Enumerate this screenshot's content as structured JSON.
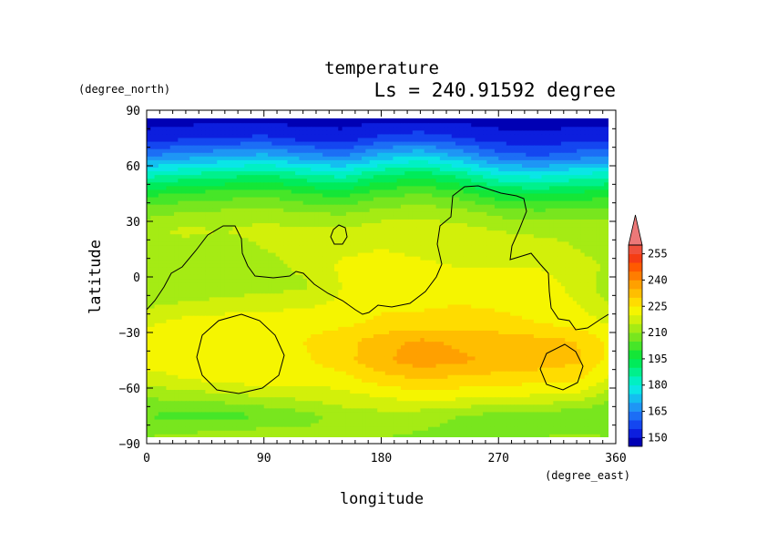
{
  "chart_data": {
    "type": "heatmap",
    "title": "temperature",
    "subtitle": "Ls = 240.91592 degree",
    "xlabel": "longitude",
    "ylabel": "latitude",
    "x_unit": "(degree_east)",
    "y_unit": "(degree_north)",
    "xlim": [
      0,
      360
    ],
    "ylim": [
      -90,
      90
    ],
    "x_data_range": [
      0,
      357
    ],
    "y_data_range": [
      -87,
      87
    ],
    "x_ticks": [
      {
        "value": 0,
        "label": "0"
      },
      {
        "value": 90,
        "label": "90"
      },
      {
        "value": 180,
        "label": "180"
      },
      {
        "value": 270,
        "label": "270"
      },
      {
        "value": 360,
        "label": "360"
      }
    ],
    "y_ticks": [
      {
        "value": 90,
        "label": "90"
      },
      {
        "value": 60,
        "label": "60"
      },
      {
        "value": 30,
        "label": "30"
      },
      {
        "value": 0,
        "label": "0"
      },
      {
        "value": -30,
        "label": "−30"
      },
      {
        "value": -60,
        "label": "−60"
      },
      {
        "value": -90,
        "label": "−90"
      }
    ],
    "colorbar": {
      "levels": [
        145,
        150,
        155,
        160,
        165,
        170,
        175,
        180,
        185,
        190,
        195,
        200,
        205,
        210,
        215,
        220,
        225,
        230,
        235,
        240,
        245,
        250,
        255,
        260
      ],
      "colors": [
        "#0000b4",
        "#0c1ede",
        "#1446f0",
        "#1c6ef5",
        "#1e96f5",
        "#14bef0",
        "#0ae6e6",
        "#00f0c3",
        "#00f08c",
        "#00eb5a",
        "#14e637",
        "#46e628",
        "#78e61e",
        "#a5eb14",
        "#d2f00a",
        "#f5f500",
        "#ffdc00",
        "#ffbe00",
        "#ffa000",
        "#ff7d00",
        "#ff5a00",
        "#f53c14",
        "#f0503c",
        "#ec7878"
      ],
      "labels": [
        "150",
        "165",
        "180",
        "195",
        "210",
        "225",
        "240",
        "255"
      ],
      "label_values": [
        150,
        165,
        180,
        195,
        210,
        225,
        240,
        255
      ],
      "extend": "max"
    },
    "grid_note": "temperature (K) sampled on longitude x latitude grid",
    "lon": [
      0,
      30,
      60,
      90,
      120,
      150,
      180,
      210,
      240,
      270,
      300,
      330,
      360
    ],
    "lat": [
      87,
      75,
      65,
      55,
      45,
      35,
      25,
      15,
      5,
      -5,
      -15,
      -25,
      -35,
      -45,
      -55,
      -65,
      -75,
      -87
    ],
    "values": [
      [
        147,
        147,
        147,
        147,
        147,
        147,
        147,
        147,
        147,
        147,
        147,
        147,
        147
      ],
      [
        152,
        154,
        155,
        156,
        153,
        152,
        156,
        158,
        155,
        152,
        151,
        153,
        152
      ],
      [
        165,
        168,
        170,
        172,
        168,
        165,
        172,
        176,
        170,
        163,
        160,
        163,
        165
      ],
      [
        183,
        186,
        188,
        190,
        186,
        183,
        190,
        193,
        188,
        180,
        178,
        181,
        183
      ],
      [
        198,
        201,
        202,
        204,
        200,
        198,
        203,
        205,
        202,
        196,
        194,
        196,
        198
      ],
      [
        208,
        210,
        211,
        212,
        210,
        209,
        212,
        213,
        212,
        208,
        206,
        207,
        208
      ],
      [
        214,
        216,
        215,
        217,
        216,
        216,
        218,
        218,
        217,
        215,
        214,
        214,
        214
      ],
      [
        212,
        213,
        212,
        215,
        217,
        219,
        220,
        219,
        218,
        217,
        217,
        215,
        212
      ],
      [
        213,
        211,
        211,
        213,
        216,
        221,
        222,
        221,
        220,
        220,
        220,
        218,
        213
      ],
      [
        210,
        210,
        212,
        213,
        214,
        220,
        223,
        224,
        222,
        222,
        222,
        219,
        210
      ],
      [
        214,
        216,
        217,
        218,
        219,
        221,
        224,
        224,
        225,
        224,
        222,
        220,
        214
      ],
      [
        219,
        222,
        223,
        224,
        223,
        224,
        226,
        227,
        228,
        227,
        225,
        223,
        219
      ],
      [
        223,
        225,
        225,
        224,
        225,
        228,
        233,
        236,
        234,
        233,
        232,
        230,
        223
      ],
      [
        222,
        223,
        225,
        224,
        224,
        228,
        234,
        238,
        236,
        234,
        233,
        231,
        222
      ],
      [
        218,
        220,
        222,
        223,
        222,
        223,
        228,
        230,
        229,
        228,
        227,
        226,
        218
      ],
      [
        210,
        212,
        213,
        215,
        216,
        218,
        220,
        222,
        221,
        220,
        219,
        218,
        210
      ],
      [
        205,
        203,
        203,
        205,
        208,
        212,
        213,
        212,
        210,
        208,
        207,
        206,
        205
      ],
      [
        210,
        212,
        213,
        214,
        212,
        211,
        210,
        209,
        208,
        209,
        210,
        211,
        210
      ]
    ],
    "annotation": "black contour lines (topography)"
  }
}
